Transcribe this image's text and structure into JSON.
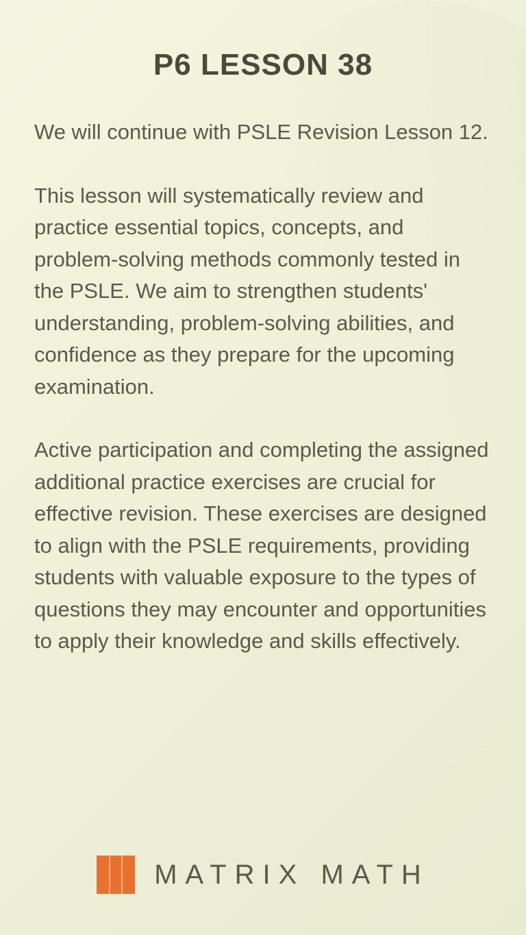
{
  "title": "P6 LESSON 38",
  "paragraphs": {
    "p1": "We will continue with PSLE Revision Lesson 12.",
    "p2": "This lesson will systematically review and practice essential topics, concepts, and problem-solving methods commonly tested in the PSLE. We aim to strengthen students' understanding, problem-solving abilities, and confidence as they prepare for the upcoming examination.",
    "p3": "Active participation and completing the assigned additional practice exercises are crucial for effective revision. These exercises are designed to align with the PSLE requirements, providing students with valuable exposure to the types of questions they may encounter and opportunities to apply their knowledge and skills effectively."
  },
  "footer": {
    "brand_name": "MATRIX MATH",
    "logo_color": "#e8712f"
  },
  "colors": {
    "background_start": "#f5f4e0",
    "background_end": "#e8ebd0",
    "title_color": "#4a4a3a",
    "body_color": "#5a5a4a"
  },
  "typography": {
    "title_fontsize": 44,
    "body_fontsize": 31,
    "brand_fontsize": 40
  }
}
